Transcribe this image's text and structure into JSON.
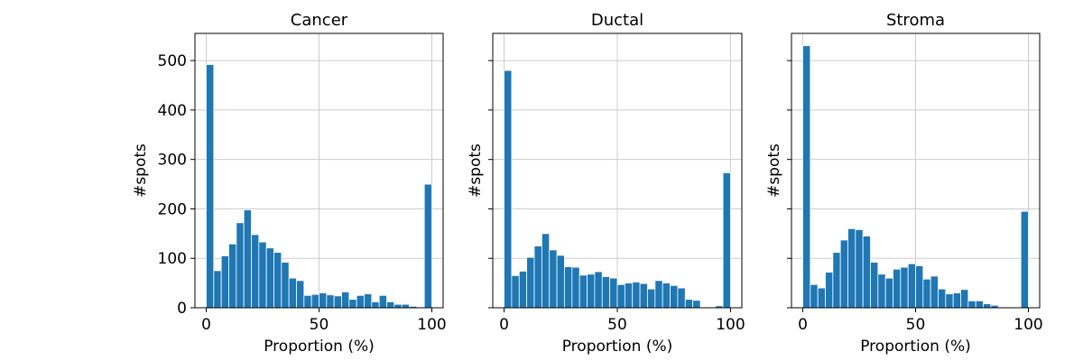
{
  "chart_data": [
    {
      "type": "bar",
      "title": "Cancer",
      "xlabel": "Proportion (%)",
      "ylabel": "#spots",
      "xlim": [
        -5,
        105
      ],
      "ylim": [
        0,
        555
      ],
      "xticks": [
        0,
        50,
        100
      ],
      "yticks": [
        0,
        100,
        200,
        300,
        400,
        500
      ],
      "grid": true,
      "bin_width": 3.333,
      "x": [
        0,
        3.33,
        6.67,
        10,
        13.33,
        16.67,
        20,
        23.33,
        26.67,
        30,
        33.33,
        36.67,
        40,
        43.33,
        46.67,
        50,
        53.33,
        56.67,
        60,
        63.33,
        66.67,
        70,
        73.33,
        76.67,
        80,
        83.33,
        86.67,
        90,
        93.33,
        96.67
      ],
      "values": [
        492,
        75,
        105,
        129,
        172,
        198,
        148,
        133,
        121,
        112,
        92,
        60,
        55,
        25,
        27,
        30,
        26,
        24,
        32,
        17,
        25,
        28,
        12,
        25,
        12,
        7,
        7,
        3,
        1,
        250
      ]
    },
    {
      "type": "bar",
      "title": "Ductal",
      "xlabel": "Proportion (%)",
      "ylabel": "#spots",
      "xlim": [
        -5,
        105
      ],
      "ylim": [
        0,
        555
      ],
      "xticks": [
        0,
        50,
        100
      ],
      "yticks": [
        0,
        100,
        200,
        300,
        400,
        500
      ],
      "grid": true,
      "bin_width": 3.333,
      "x": [
        0,
        3.33,
        6.67,
        10,
        13.33,
        16.67,
        20,
        23.33,
        26.67,
        30,
        33.33,
        36.67,
        40,
        43.33,
        46.67,
        50,
        53.33,
        56.67,
        60,
        63.33,
        66.67,
        70,
        73.33,
        76.67,
        80,
        83.33,
        86.67,
        90,
        93.33,
        96.67
      ],
      "values": [
        480,
        65,
        74,
        102,
        125,
        150,
        117,
        106,
        83,
        82,
        66,
        68,
        73,
        63,
        60,
        47,
        50,
        52,
        49,
        38,
        55,
        50,
        45,
        40,
        17,
        15,
        0,
        0,
        4,
        273
      ]
    },
    {
      "type": "bar",
      "title": "Stroma",
      "xlabel": "Proportion (%)",
      "ylabel": "#spots",
      "xlim": [
        -5,
        105
      ],
      "ylim": [
        0,
        555
      ],
      "xticks": [
        0,
        50,
        100
      ],
      "yticks": [
        0,
        100,
        200,
        300,
        400,
        500
      ],
      "grid": true,
      "bin_width": 3.333,
      "x": [
        0,
        3.33,
        6.67,
        10,
        13.33,
        16.67,
        20,
        23.33,
        26.67,
        30,
        33.33,
        36.67,
        40,
        43.33,
        46.67,
        50,
        53.33,
        56.67,
        60,
        63.33,
        66.67,
        70,
        73.33,
        76.67,
        80,
        83.33,
        86.67,
        90,
        93.33,
        96.67
      ],
      "values": [
        530,
        47,
        40,
        72,
        112,
        137,
        160,
        158,
        145,
        92,
        68,
        60,
        78,
        82,
        89,
        85,
        58,
        64,
        38,
        28,
        30,
        37,
        14,
        14,
        8,
        5,
        0,
        0,
        0,
        195
      ]
    }
  ],
  "colors": {
    "bar_fill": "#1f77b4",
    "bar_edge": "#ffffff",
    "grid": "#cccccc",
    "axes": "#000000"
  }
}
